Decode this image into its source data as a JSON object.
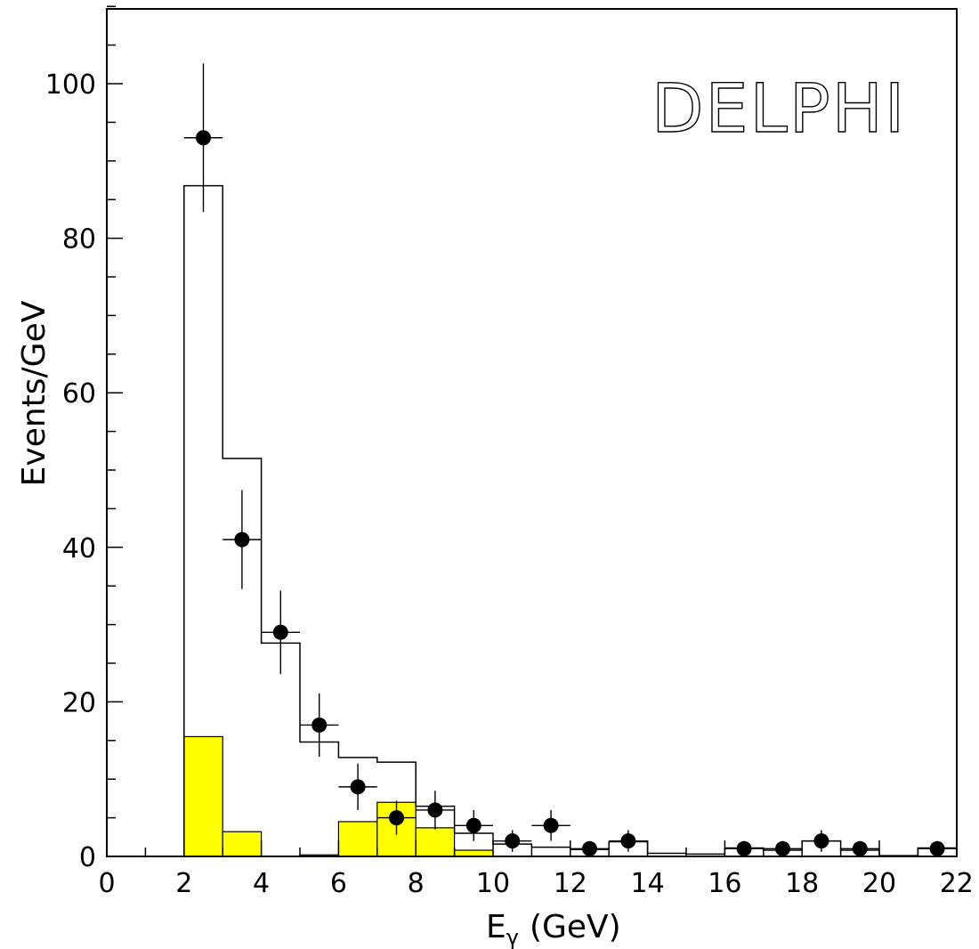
{
  "chart_data": {
    "type": "bar",
    "title": "DELPHI",
    "xlabel": "E",
    "xlabel_sub": "γ",
    "xlabel_unit": "(GeV)",
    "ylabel": "Events/GeV",
    "xlim": [
      0,
      22
    ],
    "ylim": [
      0,
      110
    ],
    "x_ticks": [
      0,
      2,
      4,
      6,
      8,
      10,
      12,
      14,
      16,
      18,
      20,
      22
    ],
    "y_ticks": [
      0,
      20,
      40,
      60,
      80,
      100
    ],
    "colors": {
      "yellow_fill": "#ffff00",
      "line": "#000000"
    },
    "series": [
      {
        "kind": "histogram",
        "bin_edges": [
          2,
          3,
          4,
          5,
          6,
          7,
          8,
          9,
          10,
          11,
          12,
          13,
          14,
          15,
          16,
          17,
          18,
          19,
          20,
          21,
          22
        ],
        "values": [
          86.8,
          51.5,
          27.6,
          14.8,
          12.8,
          12.2,
          6.5,
          3.0,
          1.6,
          1.2,
          0.9,
          1.9,
          0.4,
          0.3,
          1.1,
          0.8,
          2.0,
          0.8,
          0.1,
          1.1
        ]
      },
      {
        "kind": "filled_histogram",
        "bin_edges": [
          2,
          3,
          4,
          5,
          6,
          7,
          8,
          9,
          10,
          11,
          12,
          13,
          14,
          15,
          16,
          17,
          18,
          19,
          20,
          21,
          22
        ],
        "values": [
          15.5,
          3.2,
          0.0,
          0.2,
          4.5,
          7.0,
          3.7,
          0.8,
          0,
          0,
          0,
          0,
          0,
          0,
          0,
          0,
          0,
          0,
          0,
          0
        ]
      },
      {
        "kind": "data_points",
        "x": [
          2.5,
          3.5,
          4.5,
          5.5,
          6.5,
          7.5,
          8.5,
          9.5,
          10.5,
          11.5,
          12.5,
          13.5,
          16.5,
          17.5,
          18.5,
          19.5,
          21.5
        ],
        "y": [
          93,
          41,
          29,
          17,
          9,
          5,
          6,
          4,
          2,
          4,
          1,
          2,
          1,
          1,
          2,
          1,
          1
        ],
        "yerr": [
          9.6,
          6.4,
          5.4,
          4.1,
          3.0,
          2.2,
          2.5,
          2.0,
          1.4,
          2.0,
          1.0,
          1.4,
          1.0,
          1.0,
          1.4,
          1.0,
          1.0
        ],
        "xerr": 0.5
      }
    ]
  }
}
